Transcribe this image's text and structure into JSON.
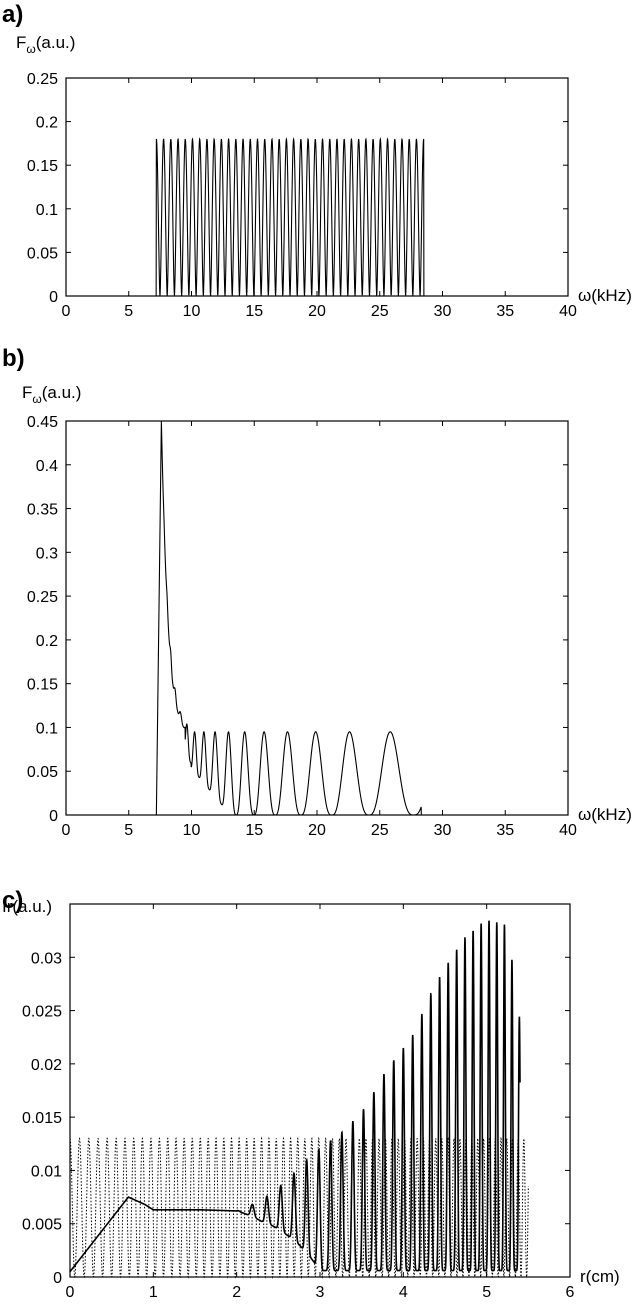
{
  "chart_data": [
    {
      "type": "line",
      "panel_label": "a)",
      "ylabel": "F",
      "ylabel_sub": "ω",
      "ylabel_unit": "(a.u.)",
      "xlabel": "ω(kHz)",
      "xlim": [
        0,
        40
      ],
      "ylim": [
        0,
        0.25
      ],
      "xticks": [
        "0",
        "5",
        "10",
        "15",
        "20",
        "25",
        "30",
        "35",
        "40"
      ],
      "yticks": [
        "0",
        "0.05",
        "0.1",
        "0.15",
        "0.2",
        "0.25"
      ],
      "grid": false,
      "series": [
        {
          "style": "solid",
          "description_values": {
            "band_start": 7.2,
            "band_end": 28.5,
            "peak": 0.18,
            "peak_count": 37
          }
        }
      ]
    },
    {
      "type": "line",
      "panel_label": "b)",
      "ylabel": "F",
      "ylabel_sub": "ω",
      "ylabel_unit": "(a.u.)",
      "xlabel": "ω(kHz)",
      "xlim": [
        0,
        40
      ],
      "ylim": [
        0,
        0.45
      ],
      "xticks": [
        "0",
        "5",
        "10",
        "15",
        "20",
        "25",
        "30",
        "35",
        "40"
      ],
      "yticks": [
        "0",
        "0.05",
        "0.1",
        "0.15",
        "0.2",
        "0.25",
        "0.3",
        "0.35",
        "0.4",
        "0.45"
      ],
      "grid": false,
      "series": [
        {
          "style": "solid",
          "description_values": {
            "band_start": 7.2,
            "spike_x": 7.6,
            "spike_peak": 0.45,
            "plateau_peak": 0.095,
            "band_end": 28.3
          }
        }
      ]
    },
    {
      "type": "line",
      "panel_label": "c)",
      "ylabel": "Ir(a.u.)",
      "xlabel": "r(cm)",
      "xlim": [
        0,
        6
      ],
      "ylim": [
        0,
        0.035
      ],
      "xticks": [
        "0",
        "1",
        "2",
        "3",
        "4",
        "5",
        "6"
      ],
      "yticks": [
        "0",
        "0.005",
        "0.01",
        "0.015",
        "0.02",
        "0.025",
        "0.03"
      ],
      "grid": false,
      "series": [
        {
          "style": "solid",
          "envelope_points": [
            [
              0.0,
              0.0005
            ],
            [
              0.3,
              0.0035
            ],
            [
              0.7,
              0.0075
            ],
            [
              0.9,
              0.0068
            ],
            [
              1.0,
              0.0063
            ],
            [
              1.6,
              0.0063
            ],
            [
              2.0,
              0.0062
            ],
            [
              2.3,
              0.0072
            ],
            [
              2.6,
              0.009
            ],
            [
              2.9,
              0.0115
            ],
            [
              3.3,
              0.0138
            ],
            [
              3.55,
              0.016
            ],
            [
              3.8,
              0.0195
            ],
            [
              4.1,
              0.0225
            ],
            [
              4.35,
              0.027
            ],
            [
              4.55,
              0.0297
            ],
            [
              4.75,
              0.032
            ],
            [
              5.0,
              0.0336
            ],
            [
              5.25,
              0.033
            ],
            [
              5.4,
              0.024
            ]
          ]
        },
        {
          "style": "dotted",
          "description_values": {
            "oscillation_peak": 0.013,
            "x_start": 0.0,
            "x_end": 5.5,
            "oscillation_count": 48
          }
        }
      ]
    }
  ]
}
